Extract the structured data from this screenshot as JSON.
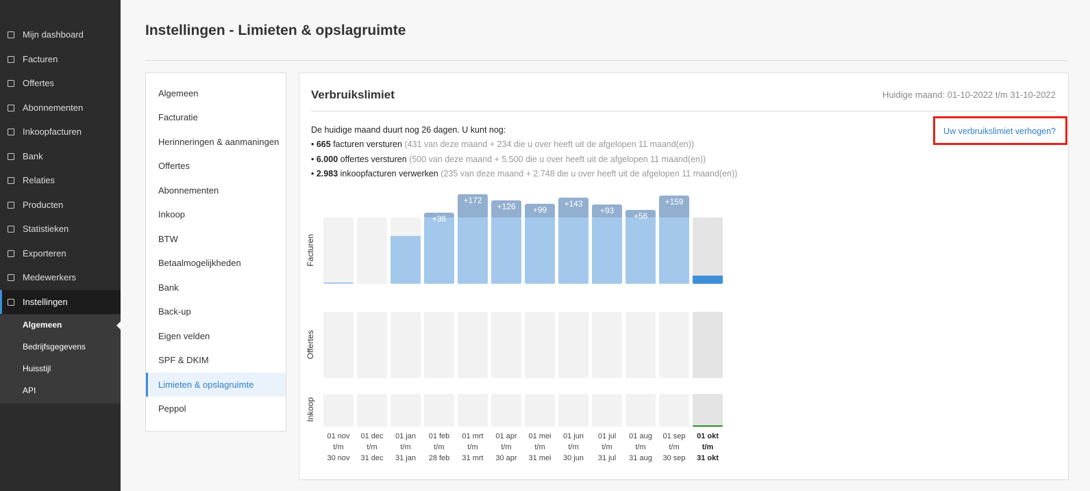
{
  "sidebar": {
    "items": [
      "Mijn dashboard",
      "Facturen",
      "Offertes",
      "Abonnementen",
      "Inkoopfacturen",
      "Bank",
      "Relaties",
      "Producten",
      "Statistieken",
      "Exporteren",
      "Medewerkers",
      "Instellingen"
    ],
    "subitems": [
      "Algemeen",
      "Bedrijfsgegevens",
      "Huisstijl",
      "API"
    ]
  },
  "header": {
    "title": "Instellingen - Limieten & opslagruimte"
  },
  "settings_menu": {
    "items": [
      "Algemeen",
      "Facturatie",
      "Herinneringen & aanmaningen",
      "Offertes",
      "Abonnementen",
      "Inkoop",
      "BTW",
      "Betaalmogelijkheden",
      "Bank",
      "Back-up",
      "Eigen velden",
      "SPF & DKIM",
      "Limieten & opslagruimte",
      "Peppol"
    ]
  },
  "panel": {
    "title": "Verbruikslimiet",
    "period": "Huidige maand: 01-10-2022 t/m 31-10-2022",
    "link": "Uw verbruikslimiet verhogen?",
    "intro": "De huidige maand duurt nog 26 dagen. U kunt nog:",
    "lines": [
      {
        "count": "665",
        "text": "facturen versturen",
        "note": "(431 van deze maand + 234 die u over heeft uit de afgelopen 11 maand(en))"
      },
      {
        "count": "6.000",
        "text": "offertes versturen",
        "note": "(500 van deze maand + 5.500 die u over heeft uit de afgelopen 11 maand(en))"
      },
      {
        "count": "2.983",
        "text": "inkoopfacturen verwerken",
        "note": "(235 van deze maand + 2.748 die u over heeft uit de afgelopen 11 maand(en))"
      }
    ]
  },
  "chart_data": {
    "type": "bar",
    "ylim": [
      0,
      100
    ],
    "columns": [
      [
        "01 nov",
        "t/m",
        "30 nov"
      ],
      [
        "01 dec",
        "t/m",
        "31 dec"
      ],
      [
        "01 jan",
        "t/m",
        "31 jan"
      ],
      [
        "01 feb",
        "t/m",
        "28 feb"
      ],
      [
        "01 mrt",
        "t/m",
        "31 mrt"
      ],
      [
        "01 apr",
        "t/m",
        "30 apr"
      ],
      [
        "01 mei",
        "t/m",
        "31 mei"
      ],
      [
        "01 jun",
        "t/m",
        "30 jun"
      ],
      [
        "01 jul",
        "t/m",
        "31 jul"
      ],
      [
        "01 aug",
        "t/m",
        "31 aug"
      ],
      [
        "01 sep",
        "t/m",
        "30 sep"
      ],
      [
        "01 okt",
        "t/m",
        "31 okt"
      ]
    ],
    "rows": [
      {
        "name": "Facturen",
        "color": "#a3c8ec",
        "highlight_color": "#3f8fd8",
        "values": [
          2,
          0,
          72,
          100,
          100,
          100,
          100,
          100,
          100,
          100,
          100,
          12
        ],
        "overflow": [
          null,
          null,
          null,
          36,
          172,
          126,
          99,
          143,
          93,
          56,
          159,
          null
        ],
        "value_labels": [
          null,
          null,
          null,
          "+36",
          "+172",
          "+126",
          "+99",
          "+143",
          "+93",
          "+56",
          "+159",
          null
        ]
      },
      {
        "name": "Offertes",
        "color": "#a3c8ec",
        "highlight_color": "#3f8fd8",
        "values": [
          0,
          0,
          0,
          0,
          0,
          0,
          0,
          0,
          0,
          0,
          0,
          0
        ]
      },
      {
        "name": "Inkoop",
        "color": "#a3c8ec",
        "highlight_color": "#2e8b22",
        "values": [
          0,
          0,
          0,
          0,
          0,
          0,
          0,
          0,
          0,
          0,
          0,
          5
        ]
      }
    ]
  }
}
